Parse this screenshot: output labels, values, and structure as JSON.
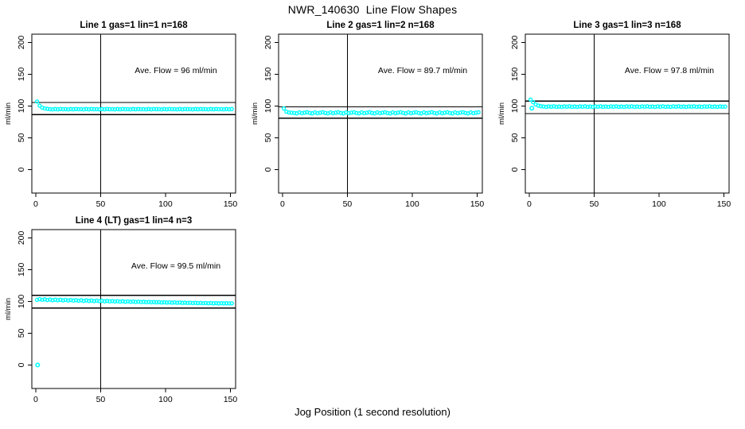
{
  "figure": {
    "title": "NWR_140630  Line Flow Shapes",
    "xlabel": "Jog Position (1 second resolution)",
    "background_color": "#ffffff",
    "point_color": "#00ffff",
    "axis_color": "#000000"
  },
  "chart_data": [
    {
      "type": "scatter",
      "title": "Line 1 gas=1 lin=1 n=168",
      "gas": 1,
      "lin": 1,
      "n": 168,
      "ylabel": "ml/min",
      "annotation": "Ave. Flow =  96  ml/min",
      "ave_flow_ml_min": 96,
      "x_ticks": [
        0,
        50,
        100,
        150
      ],
      "y_ticks": [
        0,
        50,
        100,
        150,
        200
      ],
      "xlim": [
        -3,
        154
      ],
      "ylim": [
        -37,
        213
      ],
      "vline_x": 50,
      "hlines": [
        105.6,
        86.4
      ],
      "annotation_pos": [
        108,
        152
      ],
      "series": [
        {
          "name": "flow",
          "x_start": 1,
          "x_step": 2,
          "y": [
            107.0,
            100.5,
            97.3,
            96.1,
            95.5,
            95.0,
            94.7,
            95.2,
            94.8,
            95.3,
            94.9,
            95.0,
            94.7,
            95.2,
            94.8,
            95.3,
            94.9,
            95.0,
            94.7,
            95.2,
            94.8,
            95.3,
            94.9,
            95.0,
            94.7,
            95.2,
            94.8,
            95.3,
            94.9,
            95.0,
            94.7,
            95.2,
            94.8,
            95.3,
            94.9,
            95.0,
            94.7,
            95.2,
            94.8,
            95.3,
            94.9,
            95.0,
            94.7,
            95.2,
            94.8,
            95.3,
            94.9,
            95.0,
            94.7,
            95.2,
            94.8,
            95.3,
            94.9,
            95.0,
            94.7,
            95.2,
            94.8,
            95.3,
            94.9,
            95.0,
            94.7,
            95.2,
            94.8,
            95.3,
            94.9,
            95.0,
            94.7,
            95.2,
            94.8,
            95.3,
            94.9,
            95.0,
            94.7,
            95.2,
            94.8,
            95.3
          ]
        }
      ],
      "extra_points": []
    },
    {
      "type": "scatter",
      "title": "Line 2 gas=1 lin=2 n=168",
      "gas": 1,
      "lin": 2,
      "n": 168,
      "ylabel": "ml/min",
      "annotation": "Ave. Flow =  89.7  ml/min",
      "ave_flow_ml_min": 89.7,
      "x_ticks": [
        0,
        50,
        100,
        150
      ],
      "y_ticks": [
        0,
        50,
        100,
        150,
        200
      ],
      "xlim": [
        -3,
        154
      ],
      "ylim": [
        -37,
        213
      ],
      "vline_x": 50,
      "hlines": [
        98.7,
        80.7
      ],
      "annotation_pos": [
        108,
        152
      ],
      "series": [
        {
          "name": "flow",
          "x_start": 1,
          "x_step": 2,
          "y": [
            96.0,
            91.0,
            89.8,
            89.3,
            89.0,
            88.4,
            89.9,
            88.7,
            89.5,
            90.1,
            89.0,
            88.4,
            89.9,
            88.7,
            89.5,
            90.1,
            89.0,
            88.4,
            89.9,
            88.7,
            89.5,
            90.1,
            89.0,
            88.4,
            89.9,
            88.7,
            89.5,
            90.1,
            89.0,
            88.4,
            89.9,
            88.7,
            89.5,
            90.1,
            89.0,
            88.4,
            89.9,
            88.7,
            89.5,
            90.1,
            89.0,
            88.4,
            89.9,
            88.7,
            89.5,
            90.1,
            89.0,
            88.4,
            89.9,
            88.7,
            89.5,
            90.1,
            89.0,
            88.4,
            89.9,
            88.7,
            89.5,
            90.1,
            89.0,
            88.4,
            89.9,
            88.7,
            89.5,
            90.1,
            89.0,
            88.4,
            89.9,
            88.7,
            89.5,
            90.1,
            89.0,
            88.4,
            89.9,
            88.7,
            89.5,
            90.1
          ]
        }
      ],
      "extra_points": []
    },
    {
      "type": "scatter",
      "title": "Line 3 gas=1 lin=3 n=168",
      "gas": 1,
      "lin": 3,
      "n": 168,
      "ylabel": "ml/min",
      "annotation": "Ave. Flow =  97.8  ml/min",
      "ave_flow_ml_min": 97.8,
      "x_ticks": [
        0,
        50,
        100,
        150
      ],
      "y_ticks": [
        0,
        50,
        100,
        150,
        200
      ],
      "xlim": [
        -3,
        154
      ],
      "ylim": [
        -37,
        213
      ],
      "vline_x": 50,
      "hlines": [
        107.6,
        88.0
      ],
      "annotation_pos": [
        108,
        152
      ],
      "series": [
        {
          "name": "flow",
          "x_start": 1,
          "x_step": 2,
          "y": [
            110.0,
            106.0,
            102.5,
            100.6,
            99.6,
            99.2,
            98.6,
            99.3,
            98.8,
            99.5,
            98.7,
            99.1,
            98.6,
            99.3,
            98.8,
            99.5,
            98.7,
            99.1,
            98.6,
            99.3,
            98.8,
            99.5,
            98.7,
            99.1,
            98.6,
            99.3,
            98.8,
            99.5,
            98.7,
            99.1,
            98.6,
            99.3,
            98.8,
            99.5,
            98.7,
            99.1,
            98.6,
            99.3,
            98.8,
            99.5,
            98.7,
            99.1,
            98.6,
            99.3,
            98.8,
            99.5,
            98.7,
            99.1,
            98.6,
            99.3,
            98.8,
            99.5,
            98.7,
            99.1,
            98.6,
            99.3,
            98.8,
            99.5,
            98.7,
            99.1,
            98.6,
            99.3,
            98.8,
            99.5,
            98.7,
            99.1,
            98.6,
            99.3,
            98.8,
            99.5,
            98.7,
            99.1,
            98.6,
            99.3,
            98.8,
            99.0
          ]
        }
      ],
      "extra_points": [
        [
          2,
          96.5
        ]
      ]
    },
    {
      "type": "scatter",
      "title": "Line 4 (LT) gas=1 lin=4 n=3",
      "gas": 1,
      "lin": 4,
      "n": 3,
      "ylabel": "ml/min",
      "annotation": "Ave. Flow =  99.5  ml/min",
      "ave_flow_ml_min": 99.5,
      "x_ticks": [
        0,
        50,
        100,
        150
      ],
      "y_ticks": [
        0,
        50,
        100,
        150,
        200
      ],
      "xlim": [
        -3,
        154
      ],
      "ylim": [
        -37,
        213
      ],
      "vline_x": 50,
      "hlines": [
        109.5,
        89.6
      ],
      "annotation_pos": [
        108,
        152
      ],
      "series": [
        {
          "name": "flow",
          "x_start": 1,
          "x_step": 2,
          "y": [
            102.4,
            103.6,
            102.5,
            103.3,
            102.2,
            103.0,
            102.0,
            102.8,
            101.8,
            102.6,
            101.6,
            102.4,
            101.5,
            102.2,
            101.3,
            102.0,
            101.1,
            101.8,
            100.9,
            101.6,
            100.8,
            101.4,
            100.6,
            101.2,
            100.4,
            101.0,
            100.2,
            100.8,
            100.1,
            100.6,
            99.9,
            100.4,
            99.7,
            100.2,
            99.5,
            100.0,
            99.4,
            99.8,
            99.2,
            99.6,
            99.0,
            99.4,
            98.8,
            99.2,
            98.7,
            99.0,
            98.5,
            98.9,
            98.3,
            98.7,
            98.2,
            98.5,
            98.0,
            98.4,
            97.9,
            98.2,
            97.7,
            98.1,
            97.6,
            97.9,
            97.4,
            97.8,
            97.3,
            97.6,
            97.2,
            97.5,
            97.1,
            97.4,
            97.0,
            97.3,
            96.9,
            97.2,
            96.9,
            97.1,
            96.8,
            97.0
          ]
        }
      ],
      "extra_points": [
        [
          1.5,
          0
        ]
      ]
    }
  ]
}
